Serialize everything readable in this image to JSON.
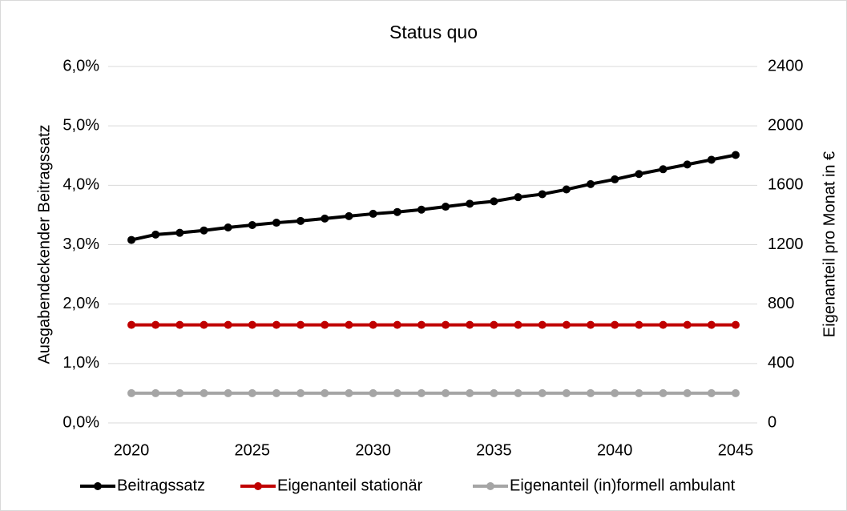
{
  "chart_data": {
    "type": "line",
    "title": "Status quo",
    "y_label": "Ausgabendeckender Beitragssatz",
    "y2_label": "Eigenanteil pro Monat in €",
    "x": [
      2020,
      2021,
      2022,
      2023,
      2024,
      2025,
      2026,
      2027,
      2028,
      2029,
      2030,
      2031,
      2032,
      2033,
      2034,
      2035,
      2036,
      2037,
      2038,
      2039,
      2040,
      2041,
      2042,
      2043,
      2044,
      2045
    ],
    "xlim": [
      2020,
      2045
    ],
    "xticks": [
      2020,
      2025,
      2030,
      2035,
      2040,
      2045
    ],
    "ylim": [
      0,
      6
    ],
    "yticks": [
      {
        "value": 0,
        "label": "0,0%"
      },
      {
        "value": 1,
        "label": "1,0%"
      },
      {
        "value": 2,
        "label": "2,0%"
      },
      {
        "value": 3,
        "label": "3,0%"
      },
      {
        "value": 4,
        "label": "4,0%"
      },
      {
        "value": 5,
        "label": "5,0%"
      },
      {
        "value": 6,
        "label": "6,0%"
      }
    ],
    "y2lim": [
      0,
      2400
    ],
    "y2ticks": [
      0,
      400,
      800,
      1200,
      1600,
      2000,
      2400
    ],
    "grid": true,
    "legend": "bottom",
    "series": [
      {
        "name": "Beitragssatz",
        "color": "#000000",
        "values": [
          3.08,
          3.17,
          3.2,
          3.24,
          3.29,
          3.33,
          3.37,
          3.4,
          3.44,
          3.48,
          3.52,
          3.55,
          3.59,
          3.64,
          3.69,
          3.73,
          3.8,
          3.85,
          3.93,
          4.02,
          4.1,
          4.19,
          4.27,
          4.35,
          4.43,
          4.51
        ]
      },
      {
        "name": "Eigenanteil stationär",
        "color": "#c00000",
        "axis": "y2",
        "values": [
          660,
          660,
          660,
          660,
          660,
          660,
          660,
          660,
          660,
          660,
          660,
          660,
          660,
          660,
          660,
          660,
          660,
          660,
          660,
          660,
          660,
          660,
          660,
          660,
          660,
          660
        ]
      },
      {
        "name": "Eigenanteil (in)formell ambulant",
        "color": "#a5a5a5",
        "axis": "y2",
        "values": [
          200,
          200,
          200,
          200,
          200,
          200,
          200,
          200,
          200,
          200,
          200,
          200,
          200,
          200,
          200,
          200,
          200,
          200,
          200,
          200,
          200,
          200,
          200,
          200,
          200,
          200
        ]
      }
    ]
  }
}
